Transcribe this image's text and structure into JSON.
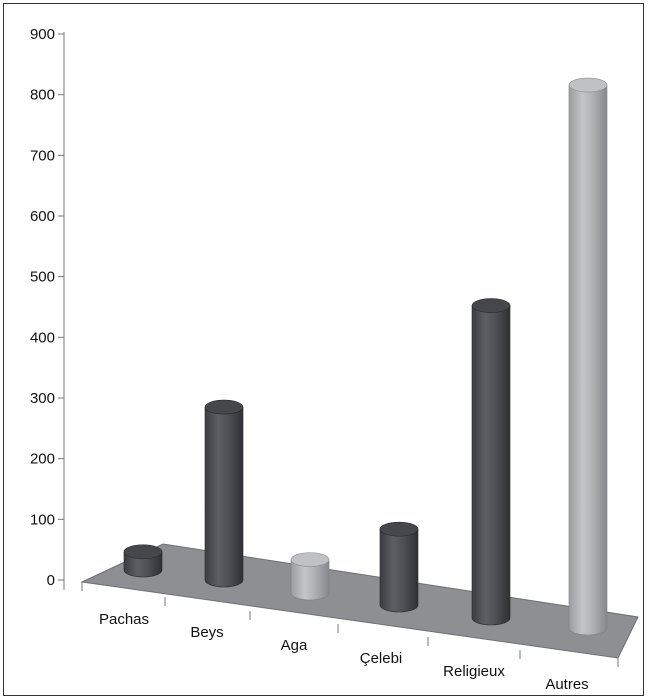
{
  "chart_data": {
    "type": "bar",
    "categories": [
      "Pachas",
      "Beys",
      "Aga",
      "Çelebi",
      "Religieux",
      "Autres"
    ],
    "values": [
      30,
      285,
      55,
      125,
      515,
      895
    ],
    "ylim": [
      0,
      900
    ],
    "yticks": [
      "0",
      "100",
      "200",
      "300",
      "400",
      "500",
      "600",
      "700",
      "800",
      "900"
    ],
    "grid": false,
    "legend": "none",
    "colors": {
      "dark": "#4b4d52",
      "light": "#a7a9ad",
      "floor": "#8d8f93",
      "axis": "#777777",
      "bar_colors": [
        "dark",
        "dark",
        "light",
        "dark",
        "dark",
        "light"
      ]
    }
  }
}
